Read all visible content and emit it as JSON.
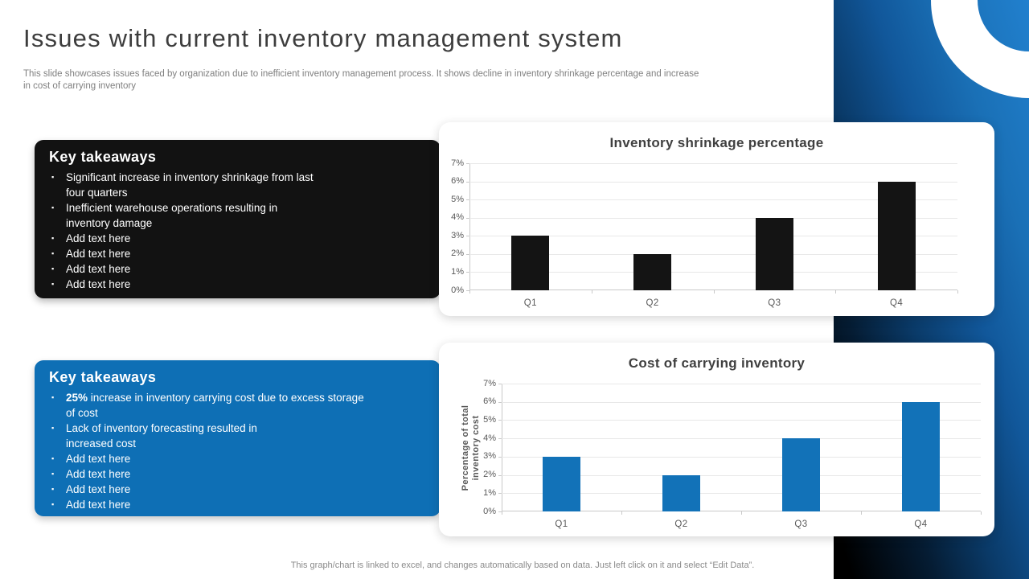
{
  "slide": {
    "title": "Issues with current inventory management system",
    "subtitle": "This slide showcases issues faced by organization due to inefficient inventory management process. It shows decline in inventory shrinkage percentage and increase\nin cost of carrying inventory",
    "footer": "This graph/chart is linked to excel, and changes automatically based on data. Just left click on it and select “Edit Data”."
  },
  "takeaway_boxes": [
    {
      "title": "Key takeaways",
      "bullets": [
        {
          "bold": "",
          "text": "Significant increase in inventory shrinkage from last\nfour quarters"
        },
        {
          "bold": "",
          "text": "Inefficient warehouse operations resulting in\ninventory damage"
        },
        {
          "bold": "",
          "text": "Add text here"
        },
        {
          "bold": "",
          "text": "Add text here"
        },
        {
          "bold": "",
          "text": "Add text here"
        },
        {
          "bold": "",
          "text": "Add text here"
        }
      ]
    },
    {
      "title": "Key takeaways",
      "bullets": [
        {
          "bold": "25%",
          "text": "increase in inventory carrying cost due to excess storage\nof cost"
        },
        {
          "bold": "",
          "text": "Lack of inventory forecasting resulted in\nincreased cost"
        },
        {
          "bold": "",
          "text": "Add text here"
        },
        {
          "bold": "",
          "text": "Add text here"
        },
        {
          "bold": "",
          "text": "Add text here"
        },
        {
          "bold": "",
          "text": "Add text here"
        }
      ]
    }
  ],
  "chart_data": [
    {
      "type": "bar",
      "title": "Inventory shrinkage percentage",
      "categories": [
        "Q1",
        "Q2",
        "Q3",
        "Q4"
      ],
      "values": [
        3,
        2,
        4,
        6
      ],
      "unit": "%",
      "xlabel": "",
      "ylabel": "",
      "ylim": [
        0,
        7
      ],
      "ytick_step": 1,
      "yticks": [
        "0%",
        "1%",
        "2%",
        "3%",
        "4%",
        "5%",
        "6%",
        "7%"
      ],
      "grid": true,
      "legend": false,
      "bar_color": "#141414"
    },
    {
      "type": "bar",
      "title": "Cost of carrying inventory",
      "categories": [
        "Q1",
        "Q2",
        "Q3",
        "Q4"
      ],
      "values": [
        3,
        2,
        4,
        6
      ],
      "unit": "%",
      "xlabel": "",
      "ylabel": "Percentage of total\ninventory cost",
      "ylim": [
        0,
        7
      ],
      "ytick_step": 1,
      "yticks": [
        "0%",
        "1%",
        "2%",
        "3%",
        "4%",
        "5%",
        "6%",
        "7%"
      ],
      "grid": true,
      "legend": false,
      "bar_color": "#1272b8"
    }
  ],
  "colors": {
    "accent_blue": "#1272b8",
    "takeaway_blue_bg": "#0e6fb5",
    "takeaway_dark_bg": "#121212",
    "panel_blue": "#2180ce",
    "title_gray": "#3d3d3d",
    "muted_gray": "#7f7f7f",
    "axis_gray": "#595959"
  }
}
